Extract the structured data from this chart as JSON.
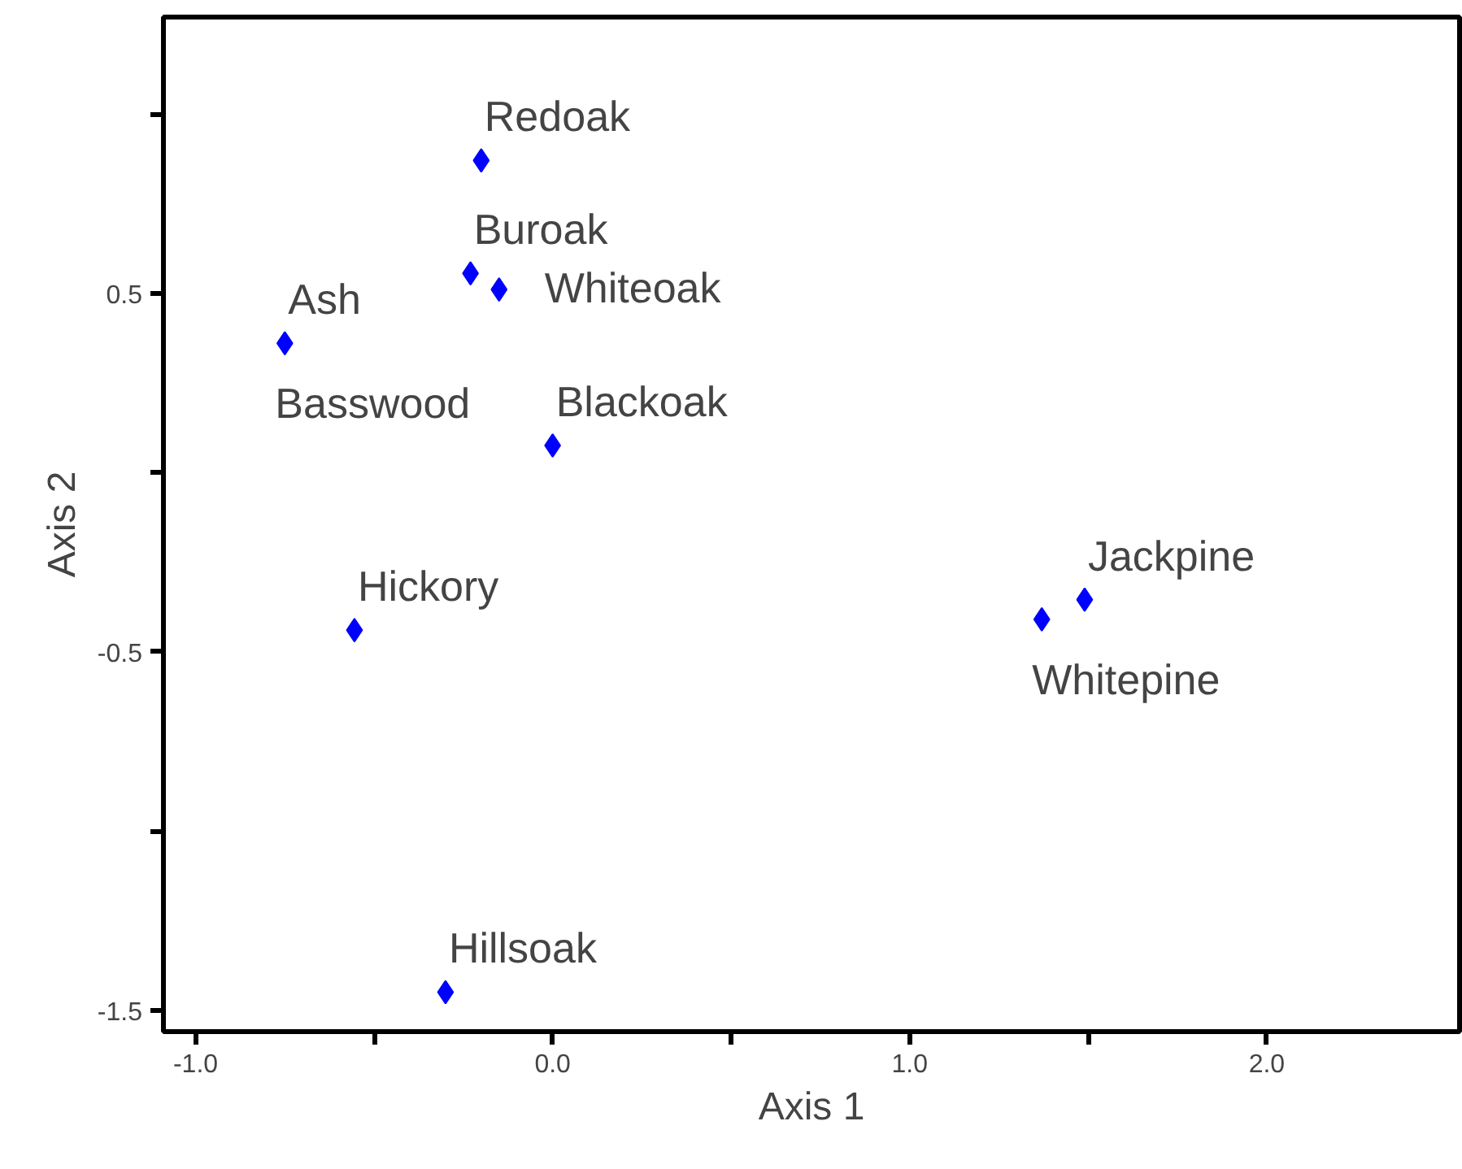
{
  "chart_data": {
    "type": "scatter",
    "xlabel": "Axis 1",
    "ylabel": "Axis 2",
    "series": [
      {
        "color": "#0000ff",
        "x": [
          -0.2,
          -0.23,
          -0.15,
          -0.75,
          0.0,
          -0.555,
          -0.3,
          1.49,
          1.37
        ],
        "values": [
          0.87,
          0.555,
          0.51,
          0.36,
          0.075,
          -0.44,
          -1.45,
          -0.355,
          -0.41
        ]
      }
    ],
    "marker": "diamond",
    "grid": false,
    "xlim": [
      -1.09,
      2.54
    ],
    "ylim": [
      -1.56,
      1.27
    ],
    "xticks": [
      {
        "value": -1.0,
        "label": "-1.0"
      },
      {
        "value": -0.5,
        "label": null
      },
      {
        "value": 0.0,
        "label": "0.0"
      },
      {
        "value": 0.5,
        "label": null
      },
      {
        "value": 1.0,
        "label": "1.0"
      },
      {
        "value": 1.5,
        "label": null
      },
      {
        "value": 2.0,
        "label": "2.0"
      }
    ],
    "yticks": [
      {
        "value": -1.5,
        "label": "-1.5"
      },
      {
        "value": -1.0,
        "label": null
      },
      {
        "value": -0.5,
        "label": "-0.5"
      },
      {
        "value": 0.0,
        "label": null
      },
      {
        "value": 0.5,
        "label": "0.5"
      },
      {
        "value": 1.0,
        "label": null
      }
    ],
    "annotations": [
      {
        "text": "Redoak",
        "x": -0.2,
        "y": 0.87
      },
      {
        "text": "Buroak",
        "x": -0.23,
        "y": 0.555
      },
      {
        "text": "Whiteoak",
        "x": -0.15,
        "y": 0.51
      },
      {
        "text": "Ash",
        "x": -0.75,
        "y": 0.36
      },
      {
        "text": "Basswood",
        "x": -0.75,
        "y": 0.36
      },
      {
        "text": "Blackoak",
        "x": 0.0,
        "y": 0.075
      },
      {
        "text": "Hickory",
        "x": -0.555,
        "y": -0.44
      },
      {
        "text": "Hillsoak",
        "x": -0.3,
        "y": -1.45
      },
      {
        "text": "Jackpine",
        "x": 1.49,
        "y": -0.355
      },
      {
        "text": "Whitepine",
        "x": 1.37,
        "y": -0.41
      }
    ]
  }
}
